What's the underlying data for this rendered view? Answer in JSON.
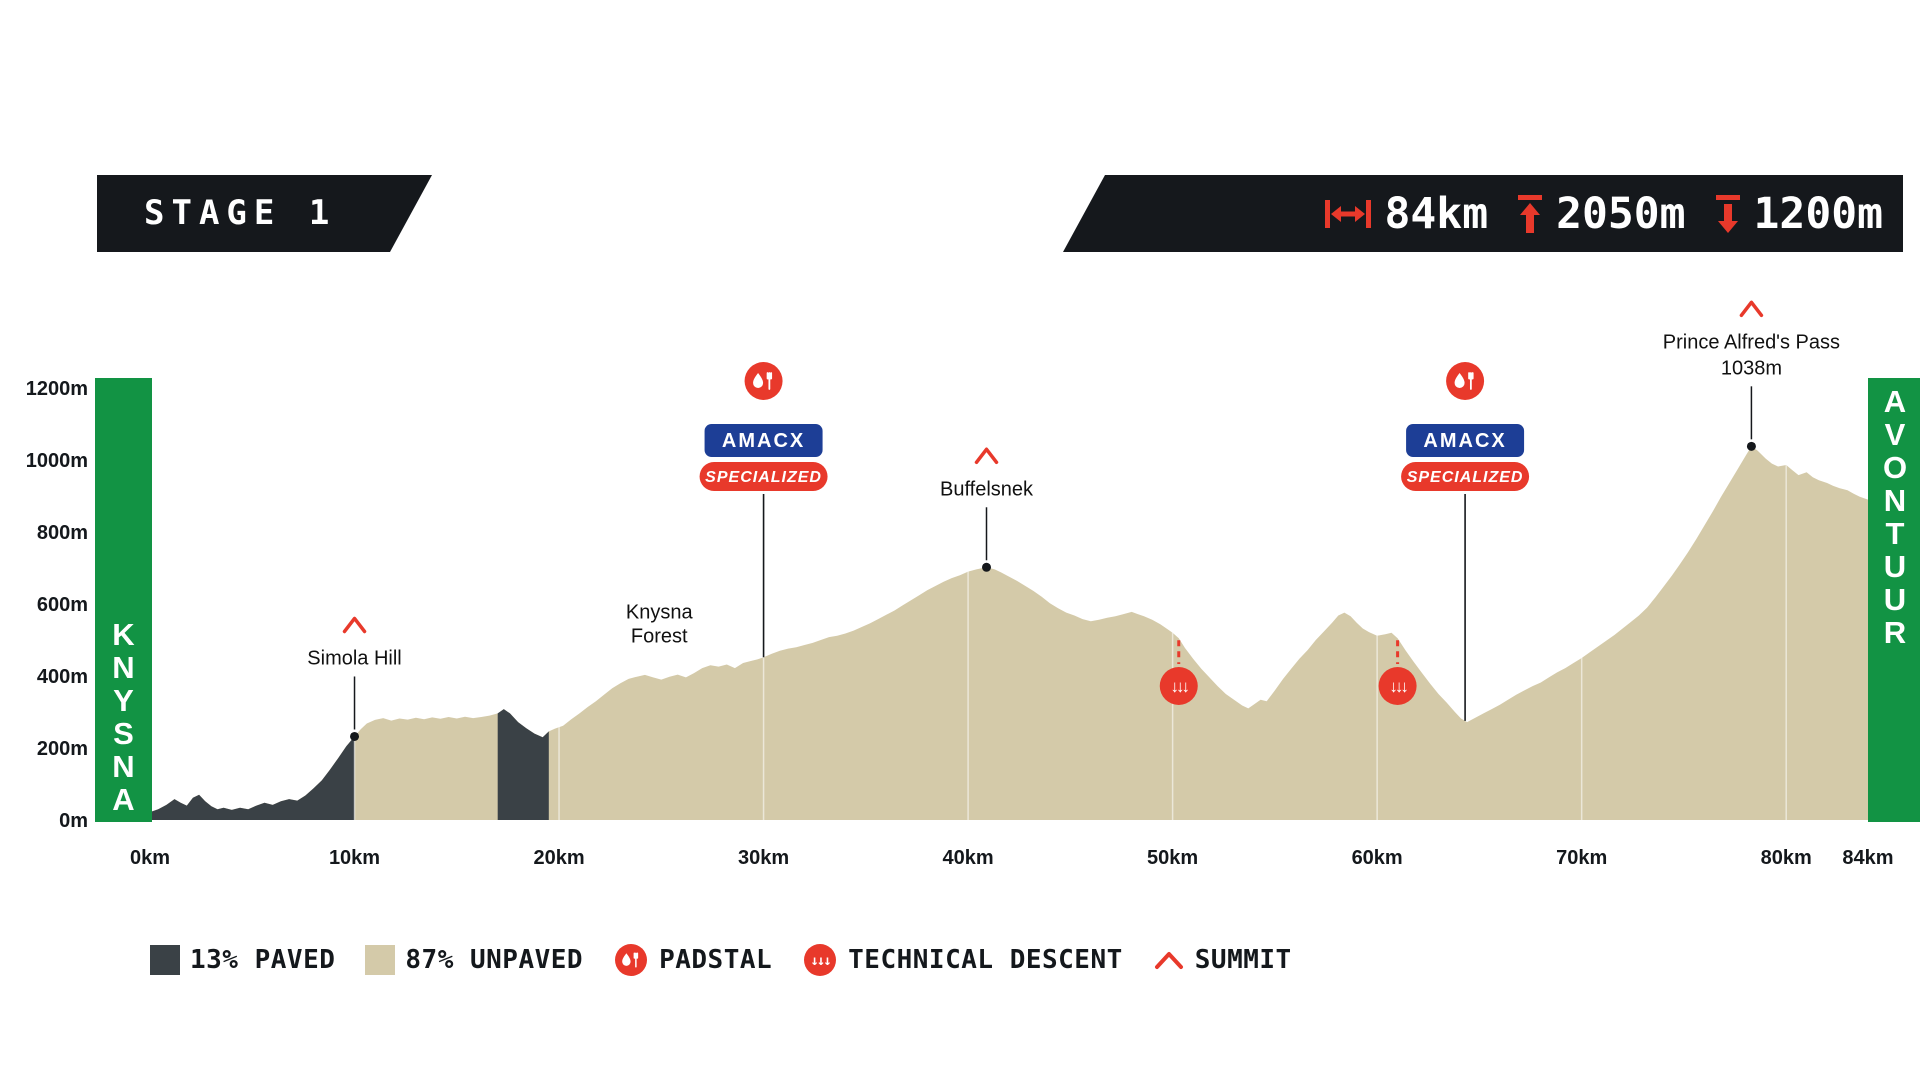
{
  "header": {
    "stage_label": "STAGE 1",
    "stats": {
      "distance": "84km",
      "ascent": "2050m",
      "descent": "1200m"
    }
  },
  "sponsors": {
    "amacx": "AMACX",
    "specialized": "SPECIALIZED"
  },
  "legend": {
    "paved": "13% PAVED",
    "unpaved": "87% UNPAVED",
    "padstal": "PADSTAL",
    "technical_descent": "TECHNICAL DESCENT",
    "summit": "SUMMIT"
  },
  "colors": {
    "red": "#e8392b",
    "green": "#129344",
    "paved_dark": "#3a4146",
    "unpaved_tan": "#d4caa9",
    "banner_black": "#15181c",
    "amacx_navy": "#1d3e96",
    "text_dark": "#14181c"
  },
  "chart_data": {
    "type": "area",
    "x_unit": "km",
    "y_unit": "m",
    "x_range": [
      0,
      84
    ],
    "y_range": [
      0,
      1200
    ],
    "x_ticks": [
      0,
      10,
      20,
      30,
      40,
      50,
      60,
      70,
      80,
      84
    ],
    "y_ticks": [
      0,
      200,
      400,
      600,
      800,
      1000,
      1200
    ],
    "start_label": "KNYSNA",
    "finish_label": "AVONTUUR",
    "paved_segments": [
      [
        0,
        10
      ],
      [
        17,
        19.5
      ]
    ],
    "profile": [
      [
        0,
        22
      ],
      [
        0.4,
        30
      ],
      [
        0.8,
        42
      ],
      [
        1.2,
        58
      ],
      [
        1.5,
        48
      ],
      [
        1.8,
        40
      ],
      [
        2.1,
        62
      ],
      [
        2.4,
        70
      ],
      [
        2.7,
        52
      ],
      [
        3,
        38
      ],
      [
        3.3,
        30
      ],
      [
        3.6,
        34
      ],
      [
        4,
        28
      ],
      [
        4.4,
        34
      ],
      [
        4.8,
        30
      ],
      [
        5.2,
        40
      ],
      [
        5.6,
        48
      ],
      [
        6,
        42
      ],
      [
        6.4,
        52
      ],
      [
        6.8,
        58
      ],
      [
        7.2,
        54
      ],
      [
        7.6,
        68
      ],
      [
        8,
        88
      ],
      [
        8.4,
        110
      ],
      [
        8.8,
        140
      ],
      [
        9.2,
        172
      ],
      [
        9.6,
        205
      ],
      [
        10,
        232
      ],
      [
        10.3,
        252
      ],
      [
        10.6,
        268
      ],
      [
        11,
        278
      ],
      [
        11.4,
        283
      ],
      [
        11.8,
        276
      ],
      [
        12.2,
        282
      ],
      [
        12.6,
        279
      ],
      [
        13,
        284
      ],
      [
        13.4,
        280
      ],
      [
        13.8,
        285
      ],
      [
        14.2,
        281
      ],
      [
        14.6,
        286
      ],
      [
        15,
        282
      ],
      [
        15.4,
        287
      ],
      [
        15.8,
        283
      ],
      [
        16.2,
        286
      ],
      [
        16.6,
        290
      ],
      [
        17,
        296
      ],
      [
        17.3,
        308
      ],
      [
        17.6,
        296
      ],
      [
        18,
        272
      ],
      [
        18.4,
        255
      ],
      [
        18.8,
        240
      ],
      [
        19.2,
        230
      ],
      [
        19.5,
        246
      ],
      [
        19.8,
        254
      ],
      [
        20.2,
        262
      ],
      [
        20.6,
        280
      ],
      [
        21,
        296
      ],
      [
        21.4,
        314
      ],
      [
        21.8,
        330
      ],
      [
        22.2,
        348
      ],
      [
        22.6,
        366
      ],
      [
        23,
        380
      ],
      [
        23.4,
        392
      ],
      [
        23.8,
        398
      ],
      [
        24.2,
        403
      ],
      [
        24.6,
        396
      ],
      [
        25,
        390
      ],
      [
        25.4,
        398
      ],
      [
        25.8,
        404
      ],
      [
        26.2,
        396
      ],
      [
        26.6,
        408
      ],
      [
        27,
        422
      ],
      [
        27.4,
        430
      ],
      [
        27.8,
        426
      ],
      [
        28.2,
        432
      ],
      [
        28.6,
        422
      ],
      [
        29,
        436
      ],
      [
        29.4,
        442
      ],
      [
        29.7,
        446
      ],
      [
        30,
        452
      ],
      [
        30.4,
        462
      ],
      [
        30.8,
        470
      ],
      [
        31.2,
        476
      ],
      [
        31.6,
        480
      ],
      [
        32,
        486
      ],
      [
        32.4,
        492
      ],
      [
        32.8,
        500
      ],
      [
        33.2,
        508
      ],
      [
        33.6,
        512
      ],
      [
        34,
        518
      ],
      [
        34.4,
        526
      ],
      [
        34.8,
        536
      ],
      [
        35.2,
        546
      ],
      [
        35.6,
        558
      ],
      [
        36,
        570
      ],
      [
        36.4,
        582
      ],
      [
        36.8,
        596
      ],
      [
        37.2,
        610
      ],
      [
        37.6,
        624
      ],
      [
        38,
        638
      ],
      [
        38.4,
        650
      ],
      [
        38.8,
        662
      ],
      [
        39.2,
        672
      ],
      [
        39.6,
        680
      ],
      [
        40,
        690
      ],
      [
        40.4,
        696
      ],
      [
        40.9,
        702
      ],
      [
        41.3,
        696
      ],
      [
        41.6,
        688
      ],
      [
        42,
        676
      ],
      [
        42.4,
        664
      ],
      [
        42.8,
        650
      ],
      [
        43.2,
        636
      ],
      [
        43.6,
        620
      ],
      [
        44,
        602
      ],
      [
        44.4,
        588
      ],
      [
        44.8,
        576
      ],
      [
        45.2,
        568
      ],
      [
        45.6,
        558
      ],
      [
        46,
        552
      ],
      [
        46.4,
        556
      ],
      [
        46.8,
        562
      ],
      [
        47.2,
        566
      ],
      [
        47.6,
        572
      ],
      [
        48,
        578
      ],
      [
        48.3,
        572
      ],
      [
        48.6,
        566
      ],
      [
        49,
        556
      ],
      [
        49.4,
        544
      ],
      [
        49.7,
        532
      ],
      [
        50,
        520
      ],
      [
        50.3,
        505
      ],
      [
        50.6,
        478
      ],
      [
        51,
        448
      ],
      [
        51.4,
        420
      ],
      [
        51.8,
        396
      ],
      [
        52.2,
        372
      ],
      [
        52.6,
        350
      ],
      [
        53,
        334
      ],
      [
        53.4,
        318
      ],
      [
        53.7,
        310
      ],
      [
        54,
        322
      ],
      [
        54.3,
        334
      ],
      [
        54.6,
        330
      ],
      [
        55,
        360
      ],
      [
        55.4,
        392
      ],
      [
        55.8,
        420
      ],
      [
        56.2,
        448
      ],
      [
        56.6,
        472
      ],
      [
        57,
        500
      ],
      [
        57.4,
        524
      ],
      [
        57.8,
        548
      ],
      [
        58.1,
        568
      ],
      [
        58.4,
        576
      ],
      [
        58.7,
        566
      ],
      [
        59,
        548
      ],
      [
        59.3,
        532
      ],
      [
        59.6,
        522
      ],
      [
        60,
        512
      ],
      [
        60.4,
        516
      ],
      [
        60.7,
        520
      ],
      [
        61,
        505
      ],
      [
        61.4,
        470
      ],
      [
        61.8,
        438
      ],
      [
        62.2,
        408
      ],
      [
        62.6,
        378
      ],
      [
        63,
        350
      ],
      [
        63.4,
        326
      ],
      [
        63.8,
        300
      ],
      [
        64.1,
        282
      ],
      [
        64.4,
        272
      ],
      [
        64.8,
        284
      ],
      [
        65.2,
        296
      ],
      [
        65.6,
        308
      ],
      [
        66,
        320
      ],
      [
        66.4,
        334
      ],
      [
        66.8,
        348
      ],
      [
        67.2,
        360
      ],
      [
        67.6,
        372
      ],
      [
        68,
        382
      ],
      [
        68.4,
        396
      ],
      [
        68.8,
        410
      ],
      [
        69.2,
        422
      ],
      [
        69.6,
        436
      ],
      [
        70,
        450
      ],
      [
        70.4,
        466
      ],
      [
        70.8,
        482
      ],
      [
        71.2,
        498
      ],
      [
        71.6,
        514
      ],
      [
        72,
        532
      ],
      [
        72.4,
        550
      ],
      [
        72.8,
        568
      ],
      [
        73.2,
        590
      ],
      [
        73.6,
        618
      ],
      [
        74,
        648
      ],
      [
        74.4,
        678
      ],
      [
        74.8,
        710
      ],
      [
        75.2,
        744
      ],
      [
        75.6,
        780
      ],
      [
        76,
        818
      ],
      [
        76.4,
        856
      ],
      [
        76.8,
        896
      ],
      [
        77.2,
        934
      ],
      [
        77.6,
        972
      ],
      [
        78,
        1010
      ],
      [
        78.3,
        1038
      ],
      [
        78.6,
        1026
      ],
      [
        79,
        1004
      ],
      [
        79.3,
        990
      ],
      [
        79.6,
        982
      ],
      [
        80,
        986
      ],
      [
        80.3,
        972
      ],
      [
        80.6,
        958
      ],
      [
        81,
        966
      ],
      [
        81.3,
        952
      ],
      [
        81.6,
        944
      ],
      [
        82,
        936
      ],
      [
        82.3,
        928
      ],
      [
        82.6,
        922
      ],
      [
        83,
        916
      ],
      [
        83.3,
        906
      ],
      [
        83.6,
        898
      ],
      [
        84,
        890
      ]
    ],
    "summits": [
      {
        "km": 10,
        "elevation": 232,
        "lines": [
          "Simola Hill"
        ]
      },
      {
        "km": 40.9,
        "elevation": 702,
        "lines": [
          "Buffelsnek"
        ]
      },
      {
        "km": 78.3,
        "elevation": 1038,
        "lines": [
          "Prince Alfred's Pass",
          "1038m"
        ]
      }
    ],
    "padstals": [
      {
        "km": 30
      },
      {
        "km": 64.3
      }
    ],
    "technical_descents": [
      {
        "km": 50.3
      },
      {
        "km": 61
      }
    ],
    "area_labels": [
      {
        "km": 24.9,
        "elevation": 560,
        "lines": [
          "Knysna",
          "Forest"
        ]
      }
    ]
  }
}
